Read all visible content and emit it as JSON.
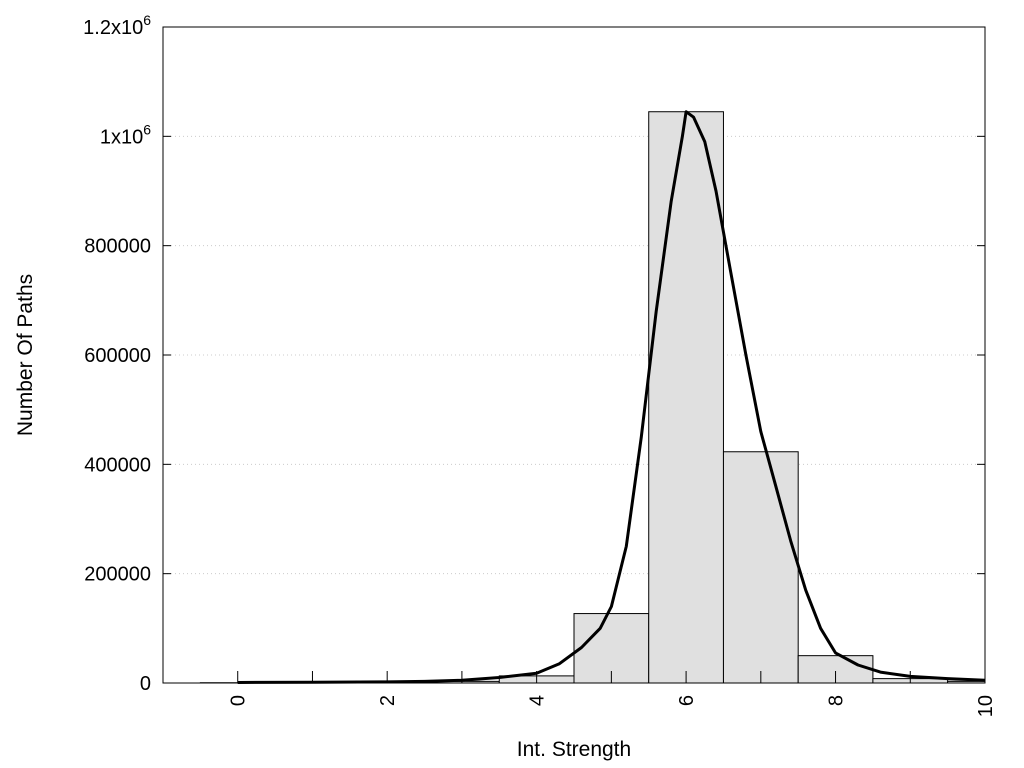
{
  "chart_data": {
    "type": "bar",
    "title": "",
    "xlabel": "Int. Strength",
    "ylabel": "Number Of Paths",
    "xlim": [
      -1,
      10
    ],
    "ylim": [
      0,
      1200000
    ],
    "grid": "horizontal-dotted",
    "x_ticks": [
      0,
      2,
      4,
      6,
      8,
      10
    ],
    "y_ticks": [
      {
        "value": 0,
        "label": "0"
      },
      {
        "value": 200000,
        "label": "200000"
      },
      {
        "value": 400000,
        "label": "400000"
      },
      {
        "value": 600000,
        "label": "600000"
      },
      {
        "value": 800000,
        "label": "800000"
      },
      {
        "value": 1000000,
        "label": "1x10",
        "sup": "6"
      },
      {
        "value": 1200000,
        "label": "1.2x10",
        "sup": "6"
      }
    ],
    "bars": {
      "bin_centers": [
        0,
        1,
        2,
        3,
        4,
        5,
        6,
        7,
        8,
        9,
        10
      ],
      "bin_width": 1,
      "values": [
        500,
        800,
        1200,
        3000,
        13000,
        127000,
        1045000,
        423000,
        50000,
        8000,
        3000
      ],
      "fill": "#e0e0e0",
      "stroke": "#000000"
    },
    "fit_curve": {
      "x": [
        0,
        1,
        2,
        2.5,
        3,
        3.5,
        4,
        4.3,
        4.6,
        4.85,
        5,
        5.2,
        5.4,
        5.6,
        5.8,
        5.95,
        6,
        6.1,
        6.25,
        6.4,
        6.6,
        6.8,
        7,
        7.2,
        7.4,
        7.6,
        7.8,
        8,
        8.3,
        8.6,
        9,
        9.5,
        10
      ],
      "y": [
        1000,
        1500,
        2000,
        3000,
        5000,
        10000,
        18000,
        35000,
        65000,
        100000,
        140000,
        250000,
        450000,
        680000,
        880000,
        1000000,
        1045000,
        1035000,
        990000,
        900000,
        750000,
        600000,
        460000,
        360000,
        260000,
        170000,
        100000,
        55000,
        33000,
        20000,
        12000,
        8000,
        5000
      ],
      "stroke": "#000000"
    }
  }
}
